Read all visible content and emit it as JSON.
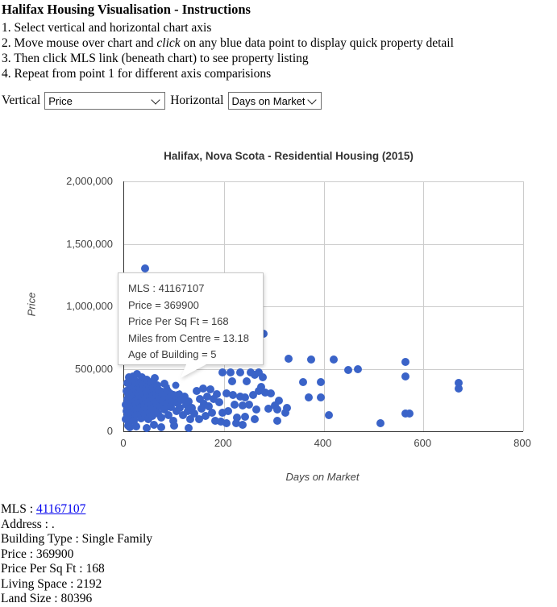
{
  "header": {
    "title": "Halifax Housing Visualisation - Instructions",
    "instructions": {
      "line1": "1. Select vertical and horizontal chart axis",
      "line2_pre": "2. Move mouse over chart and ",
      "line2_em": "click",
      "line2_post": " on any blue data point to display quick property detail",
      "line3": "3. Then click MLS link (beneath chart) to see property listing",
      "line4": "4. Repeat from point 1 for different axis comparisions"
    }
  },
  "controls": {
    "vertical_label": "Vertical",
    "vertical_value": "Price",
    "horizontal_label": "Horizontal",
    "horizontal_value": "Days on Market"
  },
  "chart_data": {
    "type": "scatter",
    "title": "Halifax, Nova Scota - Residential Housing (2015)",
    "xlabel": "Days on Market",
    "ylabel": "Price",
    "xlim": [
      0,
      800
    ],
    "ylim": [
      0,
      2000000
    ],
    "x_ticks": [
      0,
      200,
      400,
      600,
      800
    ],
    "x_tick_labels": [
      "0",
      "200",
      "400",
      "600",
      "800"
    ],
    "y_ticks": [
      0,
      500000,
      1000000,
      1500000,
      2000000
    ],
    "y_tick_labels": [
      "0",
      "500,000",
      "1,000,000",
      "1,500,000",
      "2,000,000"
    ],
    "grid": true,
    "point_color": "#3a63c8",
    "selected_point": {
      "x": 103,
      "y": 369900
    },
    "tooltip": {
      "lines": [
        "MLS : 41167107",
        "Price = 369900",
        "Price Per Sq Ft = 168",
        "Miles from Centre = 13.18",
        "Age of Building = 5"
      ]
    },
    "points": [
      [
        42,
        1303000
      ],
      [
        279,
        780000
      ],
      [
        330,
        580000
      ],
      [
        375,
        574000
      ],
      [
        420,
        574000
      ],
      [
        450,
        490000
      ],
      [
        468,
        497000
      ],
      [
        564,
        555000
      ],
      [
        564,
        440000
      ],
      [
        564,
        142000
      ],
      [
        572,
        142000
      ],
      [
        670,
        385000
      ],
      [
        670,
        340000
      ],
      [
        514,
        65000
      ],
      [
        410,
        129000
      ],
      [
        197,
        471000
      ],
      [
        213,
        471000
      ],
      [
        233,
        471000
      ],
      [
        254,
        471000
      ],
      [
        270,
        468000
      ],
      [
        262,
        452000
      ],
      [
        216,
        400000
      ],
      [
        246,
        400000
      ],
      [
        275,
        355000
      ],
      [
        278,
        432000
      ],
      [
        205,
        303000
      ],
      [
        218,
        290000
      ],
      [
        232,
        277000
      ],
      [
        242,
        271000
      ],
      [
        258,
        290000
      ],
      [
        270,
        323000
      ],
      [
        221,
        213000
      ],
      [
        237,
        206000
      ],
      [
        250,
        213000
      ],
      [
        265,
        174000
      ],
      [
        289,
        181000
      ],
      [
        302,
        206000
      ],
      [
        307,
        174000
      ],
      [
        197,
        148000
      ],
      [
        208,
        161000
      ],
      [
        226,
        110000
      ],
      [
        242,
        116000
      ],
      [
        262,
        97000
      ],
      [
        194,
        77000
      ],
      [
        205,
        65000
      ],
      [
        224,
        65000
      ],
      [
        237,
        52000
      ],
      [
        283,
        310000
      ],
      [
        294,
        303000
      ],
      [
        310,
        245000
      ],
      [
        326,
        187000
      ],
      [
        307,
        84000
      ],
      [
        323,
        148000
      ],
      [
        358,
        395000
      ],
      [
        395,
        392000
      ],
      [
        370,
        271000
      ],
      [
        394,
        271000
      ],
      [
        3,
        95000
      ],
      [
        4,
        210000
      ],
      [
        5,
        160000
      ],
      [
        5,
        320000
      ],
      [
        6,
        255000
      ],
      [
        7,
        120000
      ],
      [
        7,
        390000
      ],
      [
        8,
        300000
      ],
      [
        9,
        180000
      ],
      [
        9,
        430000
      ],
      [
        10,
        250000
      ],
      [
        11,
        340000
      ],
      [
        11,
        90000
      ],
      [
        12,
        200000
      ],
      [
        13,
        280000
      ],
      [
        13,
        415000
      ],
      [
        14,
        150000
      ],
      [
        15,
        360000
      ],
      [
        15,
        230000
      ],
      [
        16,
        310000
      ],
      [
        17,
        110000
      ],
      [
        17,
        440000
      ],
      [
        18,
        265000
      ],
      [
        19,
        195000
      ],
      [
        20,
        350000
      ],
      [
        20,
        85000
      ],
      [
        21,
        290000
      ],
      [
        22,
        240000
      ],
      [
        23,
        400000
      ],
      [
        23,
        140000
      ],
      [
        24,
        330000
      ],
      [
        25,
        215000
      ],
      [
        26,
        460000
      ],
      [
        26,
        170000
      ],
      [
        27,
        305000
      ],
      [
        28,
        255000
      ],
      [
        29,
        130000
      ],
      [
        30,
        380000
      ],
      [
        30,
        225000
      ],
      [
        31,
        295000
      ],
      [
        32,
        185000
      ],
      [
        33,
        345000
      ],
      [
        34,
        105000
      ],
      [
        35,
        270000
      ],
      [
        35,
        430000
      ],
      [
        36,
        320000
      ],
      [
        37,
        160000
      ],
      [
        38,
        240000
      ],
      [
        39,
        375000
      ],
      [
        40,
        205000
      ],
      [
        41,
        290000
      ],
      [
        42,
        135000
      ],
      [
        43,
        335000
      ],
      [
        44,
        255000
      ],
      [
        45,
        410000
      ],
      [
        46,
        180000
      ],
      [
        47,
        310000
      ],
      [
        48,
        95000
      ],
      [
        49,
        230000
      ],
      [
        50,
        365000
      ],
      [
        51,
        275000
      ],
      [
        52,
        150000
      ],
      [
        53,
        320000
      ],
      [
        54,
        215000
      ],
      [
        55,
        395000
      ],
      [
        56,
        120000
      ],
      [
        57,
        285000
      ],
      [
        58,
        350000
      ],
      [
        59,
        190000
      ],
      [
        60,
        250000
      ],
      [
        62,
        425000
      ],
      [
        63,
        165000
      ],
      [
        64,
        305000
      ],
      [
        65,
        230000
      ],
      [
        67,
        370000
      ],
      [
        68,
        140000
      ],
      [
        69,
        280000
      ],
      [
        70,
        330000
      ],
      [
        72,
        200000
      ],
      [
        73,
        260000
      ],
      [
        75,
        110000
      ],
      [
        76,
        315000
      ],
      [
        78,
        240000
      ],
      [
        80,
        380000
      ],
      [
        81,
        175000
      ],
      [
        83,
        290000
      ],
      [
        85,
        220000
      ],
      [
        87,
        345000
      ],
      [
        89,
        130000
      ],
      [
        91,
        265000
      ],
      [
        93,
        195000
      ],
      [
        95,
        310000
      ],
      [
        97,
        240000
      ],
      [
        99,
        85000
      ],
      [
        101,
        355000
      ],
      [
        103,
        275000
      ],
      [
        105,
        160000
      ],
      [
        107,
        225000
      ],
      [
        110,
        300000
      ],
      [
        112,
        190000
      ],
      [
        115,
        250000
      ],
      [
        118,
        130000
      ],
      [
        121,
        280000
      ],
      [
        124,
        210000
      ],
      [
        127,
        160000
      ],
      [
        130,
        240000
      ],
      [
        133,
        100000
      ],
      [
        136,
        185000
      ],
      [
        140,
        140000
      ],
      [
        12,
        30000
      ],
      [
        45,
        25000
      ],
      [
        75,
        35000
      ],
      [
        130,
        28000
      ],
      [
        8,
        45000
      ],
      [
        25,
        40000
      ],
      [
        60,
        50000
      ],
      [
        100,
        45000
      ],
      [
        145,
        320000
      ],
      [
        150,
        95000
      ],
      [
        152,
        260000
      ],
      [
        155,
        180000
      ],
      [
        158,
        340000
      ],
      [
        160,
        220000
      ],
      [
        163,
        120000
      ],
      [
        166,
        280000
      ],
      [
        170,
        200000
      ],
      [
        173,
        335000
      ],
      [
        176,
        150000
      ],
      [
        180,
        255000
      ],
      [
        183,
        85000
      ],
      [
        186,
        300000
      ],
      [
        190,
        230000
      ]
    ]
  },
  "details": {
    "mls_label": "MLS : ",
    "mls_link": "41167107",
    "lines": [
      "Address : .",
      "Building Type : Single Family",
      "Price : 369900",
      "Price Per Sq Ft : 168",
      "Living Space : 2192",
      "Land Size : 80396"
    ]
  }
}
